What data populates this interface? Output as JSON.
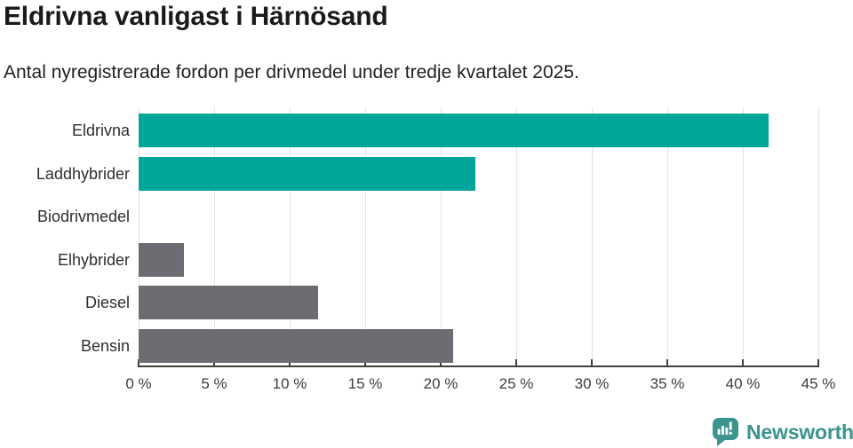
{
  "header": {
    "title": "Eldrivna vanligast i Härnösand",
    "subtitle": "Antal nyregistrerade fordon per drivmedel under tredje kvartalet 2025."
  },
  "chart_data": {
    "type": "bar",
    "orientation": "horizontal",
    "title": "Eldrivna vanligast i Härnösand",
    "subtitle": "Antal nyregistrerade fordon per drivmedel under tredje kvartalet 2025.",
    "categories": [
      "Eldrivna",
      "Laddhybrider",
      "Biodrivmedel",
      "Elhybrider",
      "Diesel",
      "Bensin"
    ],
    "values": [
      41.7,
      22.3,
      0,
      3.0,
      11.9,
      20.8
    ],
    "unit": "%",
    "xlim": [
      0,
      45
    ],
    "x_ticks": [
      0,
      5,
      10,
      15,
      20,
      25,
      30,
      35,
      40,
      45
    ],
    "x_tick_suffix": " %",
    "grid": "vertical",
    "legend": "none",
    "bar_colors": [
      "#00a69a",
      "#00a69a",
      "#6c6c72",
      "#6c6c72",
      "#6c6c72",
      "#6c6c72"
    ],
    "highlight_color": "#00a69a",
    "base_color": "#6c6c72",
    "gridline_color": "#e2e2e2",
    "axis_color": "#3f3f3f"
  },
  "footer": {
    "brand": "Newsworthy",
    "brand_color": "#3b948e",
    "logo_icon": "newsworthy-chart-bubble-icon"
  }
}
